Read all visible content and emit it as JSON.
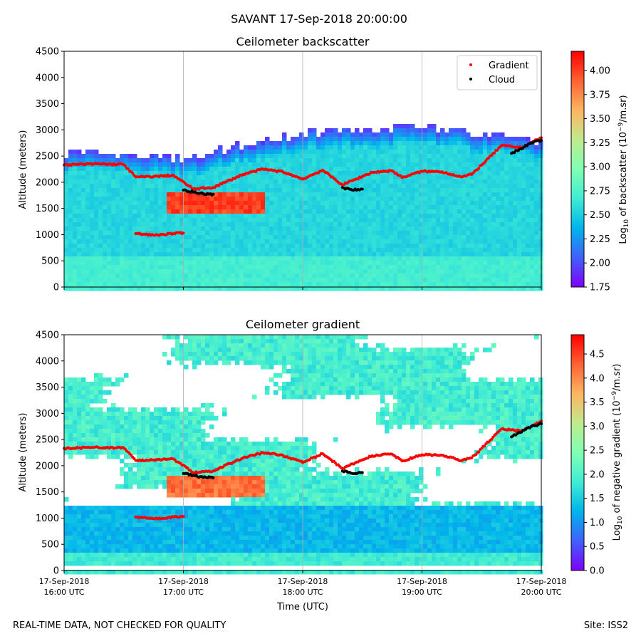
{
  "suptitle": "SAVANT 17-Sep-2018 20:00:00",
  "footer": {
    "left": "REAL-TIME DATA, NOT CHECKED FOR QUALITY",
    "right": "Site: ISS2"
  },
  "colors": {
    "gradient_marker": "#ff0000",
    "cloud_marker": "#000000",
    "colormap": [
      "#7f00ff",
      "#3f61fa",
      "#00b4eb",
      "#40ecd3",
      "#80ffb4",
      "#c0eb8d",
      "#ffb462",
      "#ff6232",
      "#ff0000"
    ]
  },
  "chart_data": [
    {
      "type": "heatmap",
      "title": "Ceilometer backscatter",
      "xlabel": "",
      "ylabel": "Altitude (meters)",
      "ylim": [
        0,
        4500
      ],
      "yticks": [
        "0",
        "500",
        "1000",
        "1500",
        "2000",
        "2500",
        "3000",
        "3500",
        "4000",
        "4500"
      ],
      "xlim": [
        "16:00",
        "20:00"
      ],
      "x_tick_labels": [],
      "grid": "vertical",
      "legend": {
        "position": "top-right",
        "entries": [
          "Gradient",
          "Cloud"
        ]
      },
      "colorbar": {
        "label": "Log10 of backscatter (10^-9/m.sr)",
        "label_main": "Log",
        "label_sub": "10",
        "label_mid": " of backscatter (10",
        "label_sup": "−9",
        "label_end": "/m.sr)",
        "range": [
          1.75,
          4.2
        ],
        "ticks": [
          "1.75",
          "2.00",
          "2.25",
          "2.50",
          "2.75",
          "3.00",
          "3.25",
          "3.50",
          "3.75",
          "4.00"
        ]
      },
      "series": [
        {
          "name": "Gradient",
          "marker": "red dot",
          "x": [
            "16:00",
            "16:15",
            "16:30",
            "16:36",
            "16:45",
            "16:55",
            "17:05",
            "17:15",
            "17:30",
            "17:40",
            "17:50",
            "18:00",
            "18:10",
            "18:20",
            "18:30",
            "18:35",
            "18:45",
            "18:50",
            "19:00",
            "19:10",
            "19:20",
            "19:25",
            "19:30",
            "19:40",
            "19:50",
            "20:00"
          ],
          "y": [
            2330,
            2350,
            2340,
            2100,
            2110,
            2130,
            1870,
            1900,
            2150,
            2250,
            2200,
            2060,
            2230,
            1950,
            2110,
            2190,
            2220,
            2090,
            2210,
            2200,
            2100,
            2150,
            2330,
            2700,
            2660,
            2850
          ]
        },
        {
          "name": "Gradient",
          "marker": "red dot",
          "x": [
            "16:36",
            "16:45",
            "16:55",
            "17:00"
          ],
          "y": [
            1020,
            990,
            1020,
            1030
          ]
        },
        {
          "name": "Cloud",
          "marker": "black dot",
          "x": [
            "17:00",
            "17:10",
            "17:15",
            "18:20",
            "18:25",
            "18:30",
            "19:45",
            "19:55",
            "20:00"
          ],
          "y": [
            1850,
            1780,
            1770,
            1900,
            1850,
            1870,
            2550,
            2750,
            2800
          ]
        }
      ]
    },
    {
      "type": "heatmap",
      "title": "Ceilometer gradient",
      "xlabel": "Time (UTC)",
      "ylabel": "Altitude (meters)",
      "ylim": [
        0,
        4500
      ],
      "yticks": [
        "0",
        "500",
        "1000",
        "1500",
        "2000",
        "2500",
        "3000",
        "3500",
        "4000",
        "4500"
      ],
      "xlim": [
        "16:00",
        "20:00"
      ],
      "x_tick_labels": [
        {
          "date": "17-Sep-2018",
          "time": "16:00 UTC"
        },
        {
          "date": "17-Sep-2018",
          "time": "17:00 UTC"
        },
        {
          "date": "17-Sep-2018",
          "time": "18:00 UTC"
        },
        {
          "date": "17-Sep-2018",
          "time": "19:00 UTC"
        },
        {
          "date": "17-Sep-2018",
          "time": "20:00 UTC"
        }
      ],
      "grid": "vertical",
      "colorbar": {
        "label": "Log10 of negative gradient (10^-9/m.sr)",
        "label_main": "Log",
        "label_sub": "10",
        "label_mid": " of negative gradient (10",
        "label_sup": "−9",
        "label_end": "/m.sr)",
        "range": [
          0,
          4.9
        ],
        "ticks": [
          "0.0",
          "0.5",
          "1.0",
          "1.5",
          "2.0",
          "2.5",
          "3.0",
          "3.5",
          "4.0",
          "4.5"
        ]
      },
      "series": [
        {
          "name": "Gradient",
          "marker": "red dot",
          "x": [
            "16:00",
            "16:15",
            "16:30",
            "16:36",
            "16:45",
            "16:55",
            "17:05",
            "17:15",
            "17:30",
            "17:40",
            "17:50",
            "18:00",
            "18:10",
            "18:20",
            "18:30",
            "18:35",
            "18:45",
            "18:50",
            "19:00",
            "19:10",
            "19:20",
            "19:25",
            "19:30",
            "19:40",
            "19:50",
            "20:00"
          ],
          "y": [
            2330,
            2350,
            2340,
            2100,
            2110,
            2130,
            1870,
            1900,
            2150,
            2250,
            2200,
            2060,
            2230,
            1950,
            2110,
            2190,
            2220,
            2090,
            2210,
            2200,
            2100,
            2150,
            2330,
            2700,
            2660,
            2850
          ]
        },
        {
          "name": "Gradient",
          "marker": "red dot",
          "x": [
            "16:36",
            "16:45",
            "16:55",
            "17:00"
          ],
          "y": [
            1020,
            990,
            1020,
            1030
          ]
        },
        {
          "name": "Cloud",
          "marker": "black dot",
          "x": [
            "17:00",
            "17:10",
            "17:15",
            "18:20",
            "18:25",
            "18:30",
            "19:45",
            "19:55",
            "20:00"
          ],
          "y": [
            1850,
            1780,
            1770,
            1900,
            1850,
            1870,
            2550,
            2750,
            2800
          ]
        }
      ]
    }
  ]
}
